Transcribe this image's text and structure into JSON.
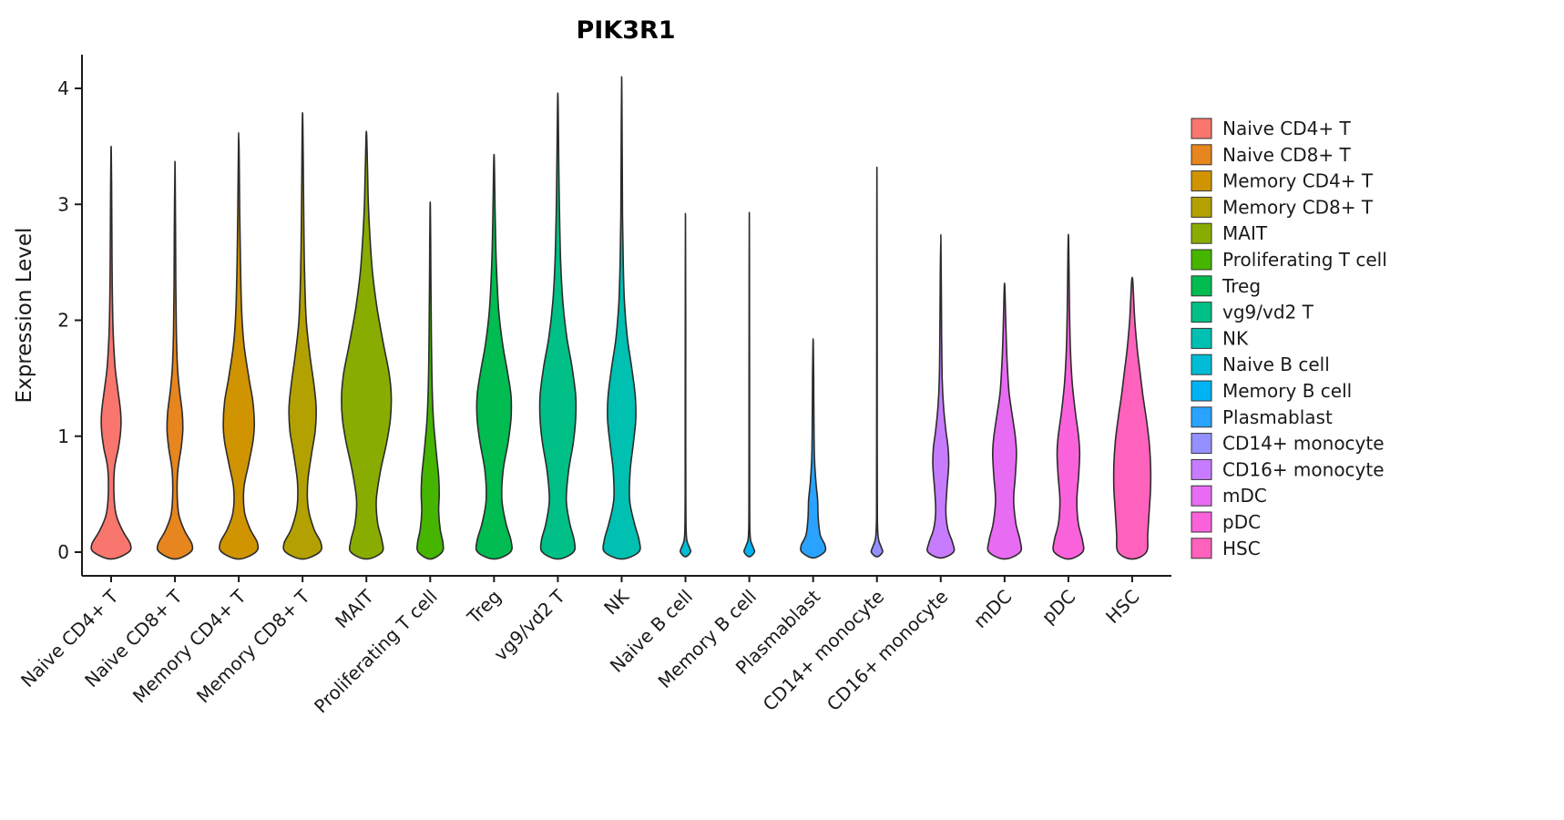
{
  "chart_data": {
    "type": "violin",
    "title": "PIK3R1",
    "ylabel": "Expression Level",
    "xlabel": "",
    "yticks": [
      0,
      1,
      2,
      3,
      4
    ],
    "ylim": [
      -0.2,
      4.3
    ],
    "grid": false,
    "legend_position": "right",
    "categories": [
      "Naive CD4+ T",
      "Naive CD8+ T",
      "Memory CD4+ T",
      "Memory CD8+ T",
      "MAIT",
      "Proliferating T cell",
      "Treg",
      "vg9/vd2 T",
      "NK",
      "Naive B cell",
      "Memory B cell",
      "Plasmablast",
      "CD14+ monocyte",
      "CD16+ monocyte",
      "mDC",
      "pDC",
      "HSC"
    ],
    "colors": [
      "#F8766D",
      "#E7851E",
      "#D09400",
      "#B2A100",
      "#89AC00",
      "#45B500",
      "#00BC51",
      "#00C087",
      "#00C0B2",
      "#00BCD6",
      "#00B3F2",
      "#29A3FF",
      "#9590FF",
      "#C77CFF",
      "#E76BF3",
      "#FA62DB",
      "#FF62BC"
    ],
    "series": [
      {
        "name": "Naive CD4+ T",
        "color": "#F8766D",
        "max_expression": 3.5,
        "profile": [
          [
            -0.06,
            0
          ],
          [
            0,
            0.62
          ],
          [
            0.07,
            0.68
          ],
          [
            0.18,
            0.42
          ],
          [
            0.32,
            0.18
          ],
          [
            0.5,
            0.1
          ],
          [
            0.72,
            0.12
          ],
          [
            0.9,
            0.26
          ],
          [
            1.05,
            0.34
          ],
          [
            1.2,
            0.34
          ],
          [
            1.4,
            0.24
          ],
          [
            1.6,
            0.14
          ],
          [
            1.9,
            0.07
          ],
          [
            2.3,
            0.04
          ],
          [
            2.8,
            0.025
          ],
          [
            3.2,
            0.015
          ],
          [
            3.5,
            0
          ]
        ]
      },
      {
        "name": "Naive CD8+ T",
        "color": "#E7851E",
        "max_expression": 3.37,
        "profile": [
          [
            -0.06,
            0
          ],
          [
            0,
            0.55
          ],
          [
            0.07,
            0.6
          ],
          [
            0.18,
            0.35
          ],
          [
            0.32,
            0.14
          ],
          [
            0.5,
            0.08
          ],
          [
            0.7,
            0.1
          ],
          [
            0.9,
            0.22
          ],
          [
            1.05,
            0.28
          ],
          [
            1.2,
            0.26
          ],
          [
            1.4,
            0.16
          ],
          [
            1.6,
            0.09
          ],
          [
            1.9,
            0.05
          ],
          [
            2.3,
            0.03
          ],
          [
            2.8,
            0.02
          ],
          [
            3.37,
            0
          ]
        ]
      },
      {
        "name": "Memory CD4+ T",
        "color": "#D09400",
        "max_expression": 3.62,
        "profile": [
          [
            -0.06,
            0
          ],
          [
            0,
            0.6
          ],
          [
            0.08,
            0.66
          ],
          [
            0.2,
            0.4
          ],
          [
            0.35,
            0.2
          ],
          [
            0.55,
            0.18
          ],
          [
            0.75,
            0.34
          ],
          [
            0.95,
            0.5
          ],
          [
            1.1,
            0.55
          ],
          [
            1.3,
            0.5
          ],
          [
            1.5,
            0.36
          ],
          [
            1.8,
            0.18
          ],
          [
            2.1,
            0.1
          ],
          [
            2.5,
            0.06
          ],
          [
            2.9,
            0.035
          ],
          [
            3.3,
            0.02
          ],
          [
            3.62,
            0
          ]
        ]
      },
      {
        "name": "Memory CD8+ T",
        "color": "#B2A100",
        "max_expression": 3.79,
        "profile": [
          [
            -0.06,
            0
          ],
          [
            0,
            0.6
          ],
          [
            0.08,
            0.65
          ],
          [
            0.2,
            0.4
          ],
          [
            0.38,
            0.2
          ],
          [
            0.6,
            0.18
          ],
          [
            0.85,
            0.32
          ],
          [
            1.05,
            0.45
          ],
          [
            1.25,
            0.48
          ],
          [
            1.45,
            0.4
          ],
          [
            1.7,
            0.26
          ],
          [
            2.0,
            0.13
          ],
          [
            2.4,
            0.07
          ],
          [
            2.8,
            0.045
          ],
          [
            3.2,
            0.03
          ],
          [
            3.6,
            0.015
          ],
          [
            3.79,
            0
          ]
        ]
      },
      {
        "name": "MAIT",
        "color": "#89AC00",
        "max_expression": 3.63,
        "profile": [
          [
            -0.06,
            0
          ],
          [
            0,
            0.55
          ],
          [
            0.1,
            0.55
          ],
          [
            0.25,
            0.4
          ],
          [
            0.45,
            0.35
          ],
          [
            0.7,
            0.5
          ],
          [
            0.95,
            0.72
          ],
          [
            1.15,
            0.85
          ],
          [
            1.35,
            0.88
          ],
          [
            1.55,
            0.8
          ],
          [
            1.8,
            0.6
          ],
          [
            2.1,
            0.38
          ],
          [
            2.4,
            0.22
          ],
          [
            2.7,
            0.13
          ],
          [
            3.0,
            0.07
          ],
          [
            3.3,
            0.04
          ],
          [
            3.63,
            0
          ]
        ]
      },
      {
        "name": "Proliferating T cell",
        "color": "#45B500",
        "max_expression": 3.02,
        "profile": [
          [
            -0.06,
            0
          ],
          [
            0,
            0.42
          ],
          [
            0.08,
            0.45
          ],
          [
            0.2,
            0.35
          ],
          [
            0.35,
            0.3
          ],
          [
            0.5,
            0.32
          ],
          [
            0.65,
            0.3
          ],
          [
            0.8,
            0.24
          ],
          [
            1.0,
            0.16
          ],
          [
            1.2,
            0.1
          ],
          [
            1.5,
            0.06
          ],
          [
            1.9,
            0.04
          ],
          [
            2.3,
            0.025
          ],
          [
            2.7,
            0.015
          ],
          [
            3.02,
            0
          ]
        ]
      },
      {
        "name": "Treg",
        "color": "#00BC51",
        "max_expression": 3.43,
        "profile": [
          [
            -0.06,
            0
          ],
          [
            0,
            0.58
          ],
          [
            0.1,
            0.6
          ],
          [
            0.25,
            0.42
          ],
          [
            0.45,
            0.28
          ],
          [
            0.7,
            0.32
          ],
          [
            0.95,
            0.5
          ],
          [
            1.15,
            0.6
          ],
          [
            1.35,
            0.6
          ],
          [
            1.55,
            0.48
          ],
          [
            1.8,
            0.3
          ],
          [
            2.1,
            0.16
          ],
          [
            2.5,
            0.08
          ],
          [
            2.9,
            0.04
          ],
          [
            3.43,
            0
          ]
        ]
      },
      {
        "name": "vg9/vd2 T",
        "color": "#00C087",
        "max_expression": 3.96,
        "profile": [
          [
            -0.06,
            0
          ],
          [
            0,
            0.55
          ],
          [
            0.1,
            0.58
          ],
          [
            0.25,
            0.42
          ],
          [
            0.45,
            0.3
          ],
          [
            0.7,
            0.38
          ],
          [
            0.95,
            0.55
          ],
          [
            1.15,
            0.63
          ],
          [
            1.35,
            0.63
          ],
          [
            1.6,
            0.5
          ],
          [
            1.85,
            0.32
          ],
          [
            2.15,
            0.18
          ],
          [
            2.5,
            0.1
          ],
          [
            2.9,
            0.06
          ],
          [
            3.3,
            0.035
          ],
          [
            3.96,
            0
          ]
        ]
      },
      {
        "name": "NK",
        "color": "#00C0B2",
        "max_expression": 4.1,
        "profile": [
          [
            -0.06,
            0
          ],
          [
            0,
            0.6
          ],
          [
            0.1,
            0.62
          ],
          [
            0.25,
            0.45
          ],
          [
            0.45,
            0.28
          ],
          [
            0.7,
            0.3
          ],
          [
            0.95,
            0.42
          ],
          [
            1.15,
            0.5
          ],
          [
            1.35,
            0.48
          ],
          [
            1.6,
            0.35
          ],
          [
            1.85,
            0.2
          ],
          [
            2.15,
            0.1
          ],
          [
            2.5,
            0.055
          ],
          [
            2.9,
            0.03
          ],
          [
            3.4,
            0.02
          ],
          [
            4.1,
            0
          ]
        ]
      },
      {
        "name": "Naive B cell",
        "color": "#00BCD6",
        "max_expression": 2.92,
        "profile": [
          [
            -0.04,
            0
          ],
          [
            0,
            0.18
          ],
          [
            0.04,
            0.14
          ],
          [
            0.1,
            0.05
          ],
          [
            0.2,
            0.02
          ],
          [
            0.5,
            0.012
          ],
          [
            1.0,
            0.01
          ],
          [
            2.0,
            0.008
          ],
          [
            2.92,
            0
          ]
        ]
      },
      {
        "name": "Memory B cell",
        "color": "#00B3F2",
        "max_expression": 2.93,
        "profile": [
          [
            -0.04,
            0
          ],
          [
            0,
            0.18
          ],
          [
            0.04,
            0.14
          ],
          [
            0.1,
            0.05
          ],
          [
            0.2,
            0.02
          ],
          [
            0.5,
            0.012
          ],
          [
            1.0,
            0.01
          ],
          [
            2.0,
            0.008
          ],
          [
            2.93,
            0
          ]
        ]
      },
      {
        "name": "Plasmablast",
        "color": "#29A3FF",
        "max_expression": 1.84,
        "profile": [
          [
            -0.05,
            0
          ],
          [
            0,
            0.4
          ],
          [
            0.06,
            0.42
          ],
          [
            0.15,
            0.25
          ],
          [
            0.3,
            0.18
          ],
          [
            0.45,
            0.16
          ],
          [
            0.6,
            0.1
          ],
          [
            0.8,
            0.05
          ],
          [
            1.1,
            0.03
          ],
          [
            1.5,
            0.02
          ],
          [
            1.84,
            0
          ]
        ]
      },
      {
        "name": "CD14+ monocyte",
        "color": "#9590FF",
        "max_expression": 3.32,
        "profile": [
          [
            -0.04,
            0
          ],
          [
            0,
            0.2
          ],
          [
            0.05,
            0.14
          ],
          [
            0.12,
            0.05
          ],
          [
            0.3,
            0.015
          ],
          [
            1.0,
            0.01
          ],
          [
            2.0,
            0.008
          ],
          [
            3.32,
            0
          ]
        ]
      },
      {
        "name": "CD16+ monocyte",
        "color": "#C77CFF",
        "max_expression": 2.74,
        "profile": [
          [
            -0.05,
            0
          ],
          [
            0,
            0.45
          ],
          [
            0.08,
            0.42
          ],
          [
            0.2,
            0.25
          ],
          [
            0.35,
            0.18
          ],
          [
            0.55,
            0.22
          ],
          [
            0.75,
            0.28
          ],
          [
            0.9,
            0.26
          ],
          [
            1.05,
            0.18
          ],
          [
            1.25,
            0.1
          ],
          [
            1.5,
            0.05
          ],
          [
            1.9,
            0.03
          ],
          [
            2.3,
            0.02
          ],
          [
            2.74,
            0
          ]
        ]
      },
      {
        "name": "mDC",
        "color": "#E76BF3",
        "max_expression": 2.32,
        "profile": [
          [
            -0.06,
            0
          ],
          [
            0,
            0.55
          ],
          [
            0.1,
            0.55
          ],
          [
            0.25,
            0.4
          ],
          [
            0.45,
            0.32
          ],
          [
            0.65,
            0.38
          ],
          [
            0.85,
            0.42
          ],
          [
            1.0,
            0.38
          ],
          [
            1.2,
            0.26
          ],
          [
            1.4,
            0.15
          ],
          [
            1.7,
            0.08
          ],
          [
            2.0,
            0.04
          ],
          [
            2.32,
            0
          ]
        ]
      },
      {
        "name": "pDC",
        "color": "#FA62DB",
        "max_expression": 2.74,
        "profile": [
          [
            -0.06,
            0
          ],
          [
            0,
            0.5
          ],
          [
            0.1,
            0.5
          ],
          [
            0.25,
            0.35
          ],
          [
            0.45,
            0.3
          ],
          [
            0.65,
            0.36
          ],
          [
            0.85,
            0.4
          ],
          [
            1.0,
            0.36
          ],
          [
            1.2,
            0.25
          ],
          [
            1.45,
            0.14
          ],
          [
            1.75,
            0.07
          ],
          [
            2.1,
            0.04
          ],
          [
            2.74,
            0
          ]
        ]
      },
      {
        "name": "HSC",
        "color": "#FF62BC",
        "max_expression": 2.37,
        "profile": [
          [
            -0.06,
            0
          ],
          [
            0,
            0.5
          ],
          [
            0.15,
            0.55
          ],
          [
            0.35,
            0.6
          ],
          [
            0.55,
            0.65
          ],
          [
            0.75,
            0.65
          ],
          [
            0.95,
            0.6
          ],
          [
            1.15,
            0.5
          ],
          [
            1.35,
            0.38
          ],
          [
            1.55,
            0.28
          ],
          [
            1.75,
            0.18
          ],
          [
            2.0,
            0.09
          ],
          [
            2.37,
            0
          ]
        ]
      }
    ]
  }
}
